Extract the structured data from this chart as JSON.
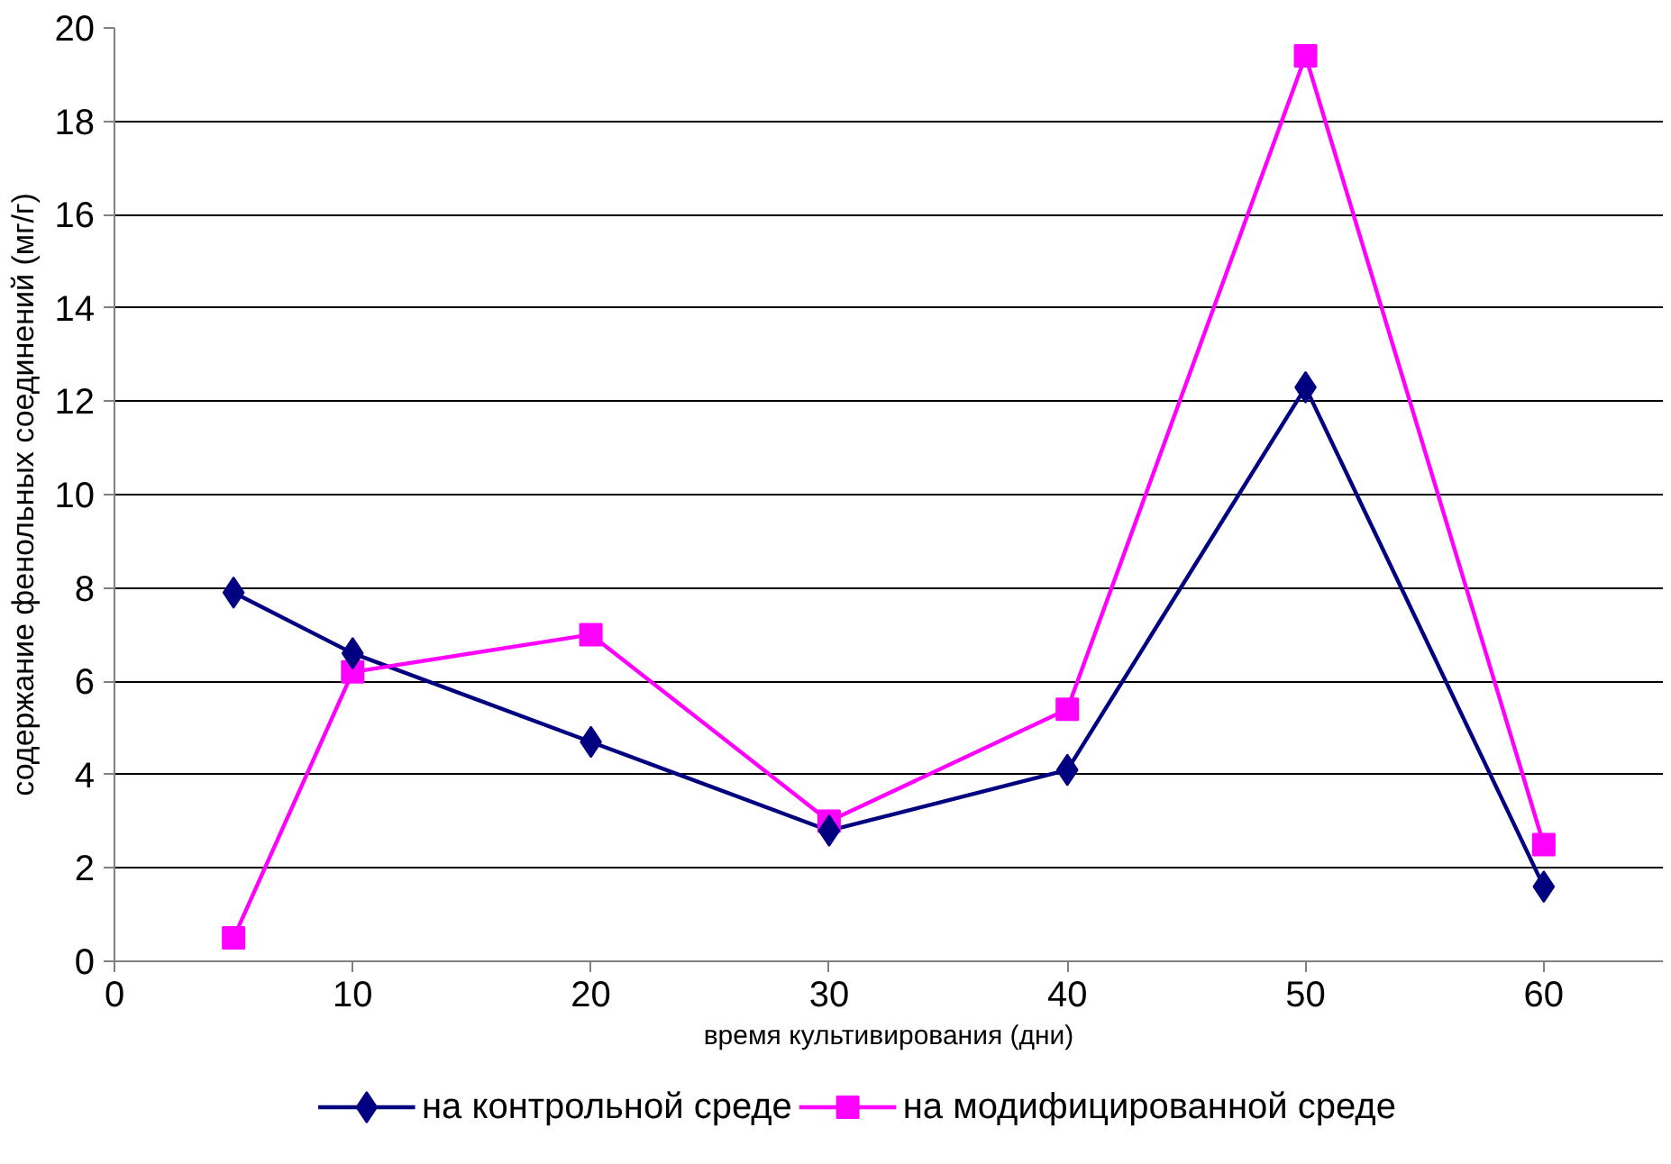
{
  "chart_data": {
    "type": "line",
    "xlabel": "время культивирования (дни)",
    "ylabel": "содержание фенольных соединений (мг/г)",
    "x": [
      5,
      10,
      20,
      30,
      40,
      50,
      60
    ],
    "series": [
      {
        "name": "на контрольной среде",
        "color": "#000080",
        "marker": "diamond",
        "values": [
          7.9,
          6.6,
          4.7,
          2.8,
          4.1,
          12.3,
          1.6
        ]
      },
      {
        "name": "на модифицированной среде",
        "color": "#ff00ff",
        "marker": "square",
        "values": [
          0.5,
          6.2,
          7.0,
          3.0,
          5.4,
          19.4,
          2.5
        ]
      }
    ],
    "xlim": [
      0,
      65
    ],
    "xticks": [
      0,
      10,
      20,
      30,
      40,
      50,
      60
    ],
    "ylim": [
      0,
      20
    ],
    "yticks": [
      0,
      2,
      4,
      6,
      8,
      10,
      12,
      14,
      16,
      18,
      20
    ],
    "grid": "y",
    "legend": "bottom",
    "line_style": "solid"
  }
}
